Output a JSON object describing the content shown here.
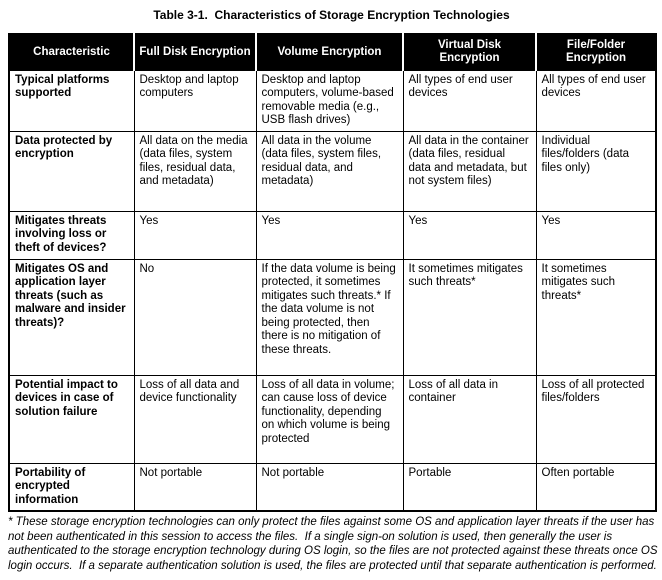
{
  "title": "Table 3-1.  Characteristics of Storage Encryption Technologies",
  "colors": {
    "header_bg": "#000000",
    "header_text": "#ffffff",
    "border": "#000000",
    "body_bg": "#ffffff"
  },
  "table": {
    "columns": [
      "Characteristic",
      "Full Disk Encryption",
      "Volume Encryption",
      "Virtual Disk Encryption",
      "File/Folder Encryption"
    ],
    "rows": [
      {
        "characteristic": "Typical platforms supported",
        "cells": [
          "Desktop and laptop computers",
          "Desktop and laptop computers, volume-based removable media (e.g., USB flash drives)",
          "All types of end user devices",
          "All types of end user devices"
        ]
      },
      {
        "characteristic": "Data protected by encryption",
        "cells": [
          "All data on the media (data files, system files, residual data, and metadata)",
          "All data in the volume (data files, system files, residual data, and metadata)",
          "All data in the container (data files, residual data and metadata, but not system files)",
          "Individual files/folders (data files only)"
        ]
      },
      {
        "characteristic": "Mitigates threats involving loss or theft of devices?",
        "cells": [
          "Yes",
          "Yes",
          "Yes",
          "Yes"
        ]
      },
      {
        "characteristic": "Mitigates OS and application layer threats (such as malware and insider threats)?",
        "cells": [
          "No",
          "If the data volume is being protected, it sometimes mitigates such threats.* If the data volume is not being protected, then there is no mitigation of these threats.",
          "It sometimes mitigates such threats*",
          "It sometimes mitigates such threats*"
        ]
      },
      {
        "characteristic": "Potential impact to devices in case of solution failure",
        "cells": [
          "Loss of all data and device functionality",
          "Loss of all data in volume; can cause loss of device functionality, depending on which volume is being protected",
          "Loss of all data in container",
          "Loss of all protected files/folders"
        ]
      },
      {
        "characteristic": "Portability of encrypted information",
        "cells": [
          "Not portable",
          "Not portable",
          "Portable",
          "Often portable"
        ]
      }
    ]
  },
  "footnote": "* These storage encryption technologies can only protect the files against some OS and application layer threats if the user has not been authenticated in this session to access the files.  If a single sign-on solution is used, then generally the user is authenticated to the storage encryption technology during OS login, so the files are not protected against these threats once OS login occurs.  If a separate authentication solution is used, the files are protected until that separate authentication is performed."
}
